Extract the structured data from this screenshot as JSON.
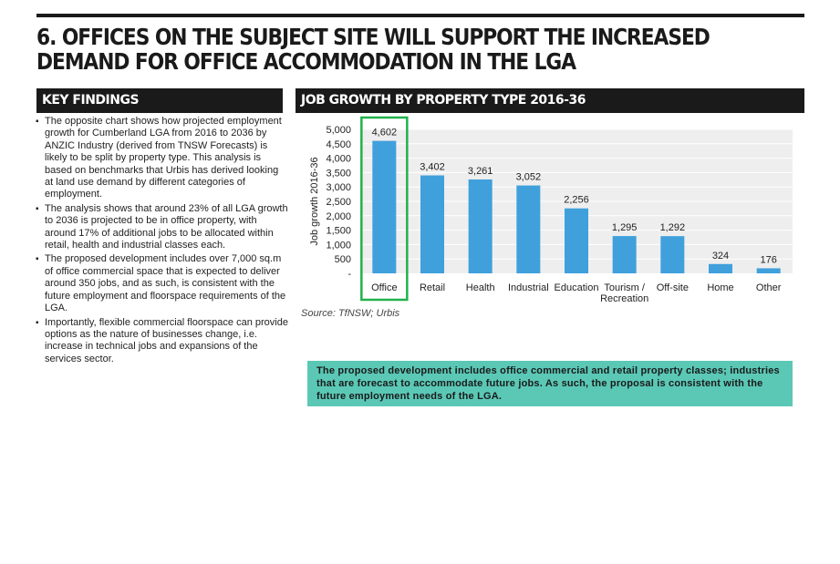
{
  "page": {
    "title": "6. OFFICES ON THE SUBJECT SITE WILL SUPPORT THE INCREASED DEMAND FOR OFFICE ACCOMMODATION IN THE LGA"
  },
  "key_findings": {
    "heading": "KEY FINDINGS",
    "items": [
      "The opposite chart shows how projected employment growth for Cumberland LGA from 2016 to 2036 by ANZIC Industry (derived from TNSW Forecasts) is likely to be split by property type.  This analysis is based on benchmarks that Urbis has derived looking at land use demand by different categories of employment.",
      "The analysis shows that around 23% of all LGA growth to 2036 is projected to be in office property, with around 17% of additional jobs to be allocated within retail, health and industrial classes each.",
      "The proposed development includes over 7,000 sq.m of office commercial space that is expected to deliver around 350 jobs, and as such, is consistent with the future employment and floorspace requirements of the LGA.",
      "Importantly, flexible commercial floorspace can provide options as the nature of businesses change, i.e. increase in technical jobs and expansions of the services sector."
    ]
  },
  "chart_section": {
    "heading": "JOB GROWTH BY PROPERTY TYPE 2016-36",
    "source": "Source: TfNSW; Urbis"
  },
  "callout": {
    "text": "The proposed development includes office commercial and retail property classes; industries that are forecast to accommodate future jobs. As such, the proposal is consistent with the future employment needs of the LGA."
  },
  "chart_data": {
    "type": "bar",
    "categories": [
      "Office",
      "Retail",
      "Health",
      "Industrial",
      "Education",
      "Tourism / Recreation",
      "Off-site",
      "Home",
      "Other"
    ],
    "category_lines": [
      [
        "Office"
      ],
      [
        "Retail"
      ],
      [
        "Health"
      ],
      [
        "Industrial"
      ],
      [
        "Education"
      ],
      [
        "Tourism /",
        "Recreation"
      ],
      [
        "Off-site"
      ],
      [
        "Home"
      ],
      [
        "Other"
      ]
    ],
    "values": [
      4602,
      3402,
      3261,
      3052,
      2256,
      1295,
      1292,
      324,
      176
    ],
    "data_labels": [
      "4,602",
      "3,402",
      "3,261",
      "3,052",
      "2,256",
      "1,295",
      "1,292",
      "324",
      "176"
    ],
    "ylabel": "Job growth 2016-36",
    "ylim": [
      0,
      5000
    ],
    "yticks": [
      0,
      500,
      1000,
      1500,
      2000,
      2500,
      3000,
      3500,
      4000,
      4500,
      5000
    ],
    "ytick_labels": [
      "-",
      "500",
      "1,000",
      "1,500",
      "2,000",
      "2,500",
      "3,000",
      "3,500",
      "4,000",
      "4,500",
      "5,000"
    ],
    "highlight_category": "Office",
    "grid": true,
    "colors": {
      "bar": "#3fa0dc",
      "plot_bg": "#eeeeee",
      "highlight_border": "#22b14c"
    }
  }
}
